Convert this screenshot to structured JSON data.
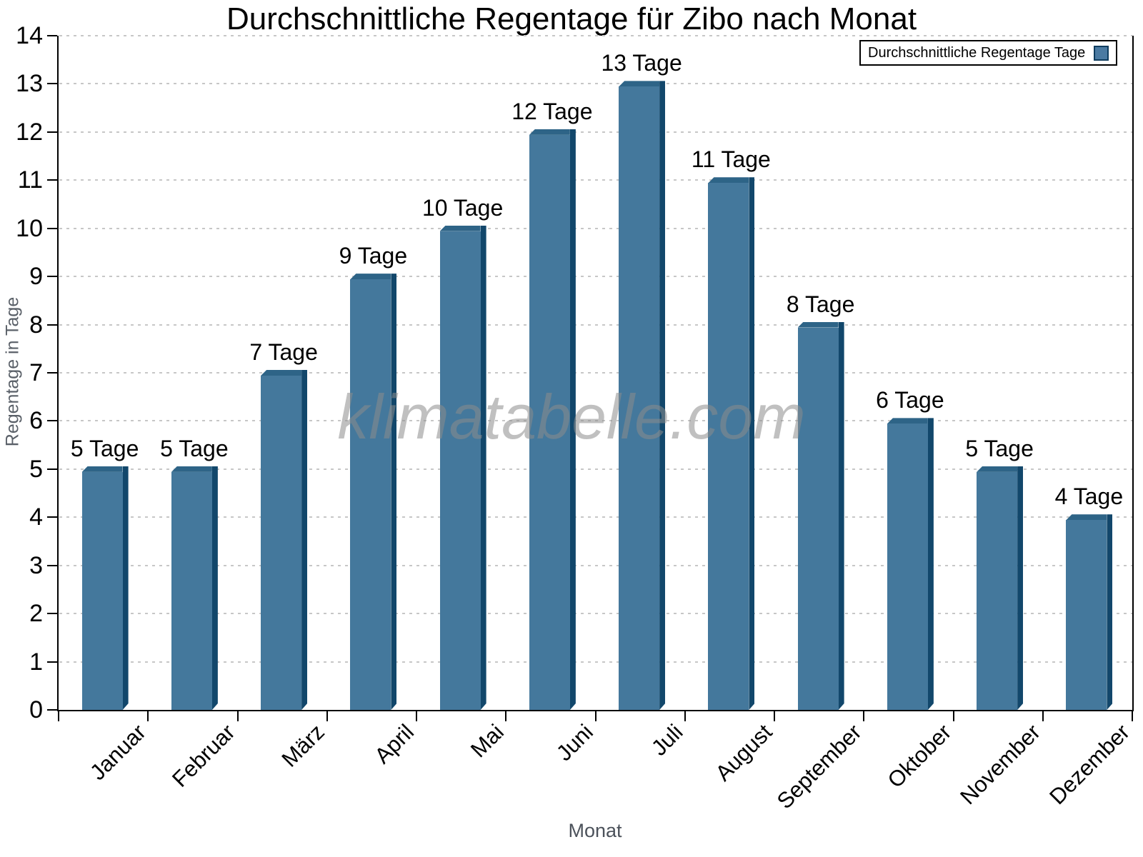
{
  "chart_data": {
    "type": "bar",
    "title": "Durchschnittliche Regentage für Zibo nach Monat",
    "xlabel": "Monat",
    "ylabel": "Regentage in Tage",
    "categories": [
      "Januar",
      "Februar",
      "März",
      "April",
      "Mai",
      "Juni",
      "Juli",
      "August",
      "September",
      "Oktober",
      "November",
      "Dezember"
    ],
    "values": [
      5,
      5,
      7,
      9,
      10,
      12,
      13,
      11,
      8,
      6,
      5,
      4
    ],
    "bar_labels": [
      "5 Tage",
      "5 Tage",
      "7 Tage",
      "9 Tage",
      "10 Tage",
      "12 Tage",
      "13 Tage",
      "11 Tage",
      "8 Tage",
      "6 Tage",
      "5 Tage",
      "4 Tage"
    ],
    "ylim": [
      0,
      14
    ],
    "ytick_step": 1,
    "grid": "horizontal-dotted",
    "legend": {
      "label": "Durchschnittliche Regentage Tage",
      "position": "top-right"
    },
    "watermark": "klimatabelle.com",
    "colors": {
      "bar_face": "#44789c",
      "bar_top": "#2e6487",
      "bar_side": "#12476b",
      "swatch": "#4a7aa2",
      "grid": "#c7c7c7",
      "axis": "#000000",
      "muted_text": "#5a6068",
      "watermark_text": "#8c8c8c"
    }
  }
}
